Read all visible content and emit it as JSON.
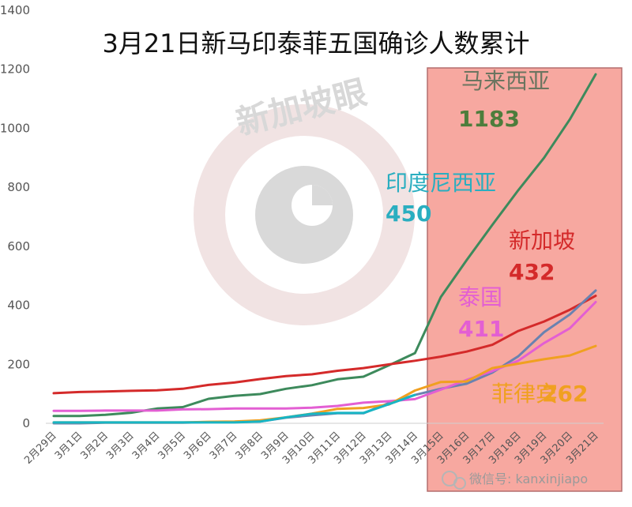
{
  "chart_data": {
    "type": "line",
    "title": "3月21日新马印泰菲五国确诊人数累计",
    "xlabel": "",
    "ylabel": "",
    "ylim": [
      0,
      1400
    ],
    "yticks": [
      0,
      200,
      400,
      600,
      800,
      1000,
      1200,
      1400
    ],
    "grid": false,
    "legend": "none",
    "categories": [
      "2月29日",
      "3月1日",
      "3月2日",
      "3月3日",
      "3月4日",
      "3月5日",
      "3月6日",
      "3月7日",
      "3月8日",
      "3月9日",
      "3月10日",
      "3月11日",
      "3月12日",
      "3月13日",
      "3月14日",
      "3月15日",
      "3月16日",
      "3月17日",
      "3月18日",
      "3月19日",
      "3月20日",
      "3月21日"
    ],
    "series": [
      {
        "key": "malaysia",
        "name": "马来西亚",
        "color": "#3d8a5c",
        "values": [
          25,
          25,
          29,
          36,
          50,
          55,
          83,
          93,
          99,
          117,
          129,
          149,
          158,
          197,
          238,
          428,
          553,
          673,
          790,
          900,
          1030,
          1183
        ]
      },
      {
        "key": "singapore",
        "name": "新加坡",
        "color": "#d42a2a",
        "values": [
          102,
          106,
          108,
          110,
          112,
          117,
          130,
          138,
          150,
          160,
          166,
          178,
          187,
          200,
          212,
          226,
          243,
          266,
          313,
          345,
          385,
          432
        ]
      },
      {
        "key": "indonesia",
        "name": "印度尼西亚",
        "color": "#6a82b0",
        "values": [
          0,
          0,
          2,
          2,
          2,
          2,
          4,
          4,
          6,
          19,
          27,
          34,
          34,
          69,
          96,
          117,
          134,
          172,
          227,
          309,
          369,
          450
        ]
      },
      {
        "key": "thailand",
        "name": "泰国",
        "color": "#e35fd3",
        "values": [
          42,
          42,
          43,
          43,
          43,
          47,
          48,
          50,
          50,
          50,
          53,
          59,
          70,
          75,
          82,
          114,
          147,
          177,
          212,
          272,
          322,
          411
        ]
      },
      {
        "key": "philippines",
        "name": "菲律宾",
        "color": "#f0a020",
        "values": [
          3,
          3,
          3,
          3,
          3,
          3,
          5,
          6,
          10,
          20,
          33,
          49,
          52,
          64,
          111,
          140,
          142,
          187,
          202,
          217,
          230,
          262
        ]
      },
      {
        "key": "cyan",
        "name": "",
        "color": "#17b5c4",
        "values": [
          3,
          3,
          3,
          3,
          3,
          3,
          3,
          3,
          6,
          20,
          32,
          35,
          35,
          65,
          96,
          null,
          null,
          null,
          null,
          null,
          null,
          null
        ]
      }
    ],
    "annotations": [
      {
        "series": "malaysia",
        "name": "马来西亚",
        "value": "1183",
        "name_color": "#6b7560",
        "value_color": "#4d7d3c"
      },
      {
        "series": "indonesia",
        "name": "印度尼西亚",
        "value": "450",
        "name_color": "#2aaec0",
        "value_color": "#2aaec0"
      },
      {
        "series": "singapore",
        "name": "新加坡",
        "value": "432",
        "name_color": "#d42a2a",
        "value_color": "#d42a2a"
      },
      {
        "series": "thailand",
        "name": "泰国",
        "value": "411",
        "name_color": "#e35fd3",
        "value_color": "#e35fd3"
      },
      {
        "series": "philippines",
        "name": "菲律宾",
        "value": "262",
        "name_color": "#f0a020",
        "value_color": "#f0a020"
      }
    ],
    "highlight": {
      "from": "3月15日",
      "to": "3月21日",
      "color": "#f7a8a0",
      "border": "#b46e6e"
    }
  },
  "watermark": {
    "text": "新加坡眼"
  },
  "wechat": {
    "text": "微信号: kanxinjiapo"
  }
}
